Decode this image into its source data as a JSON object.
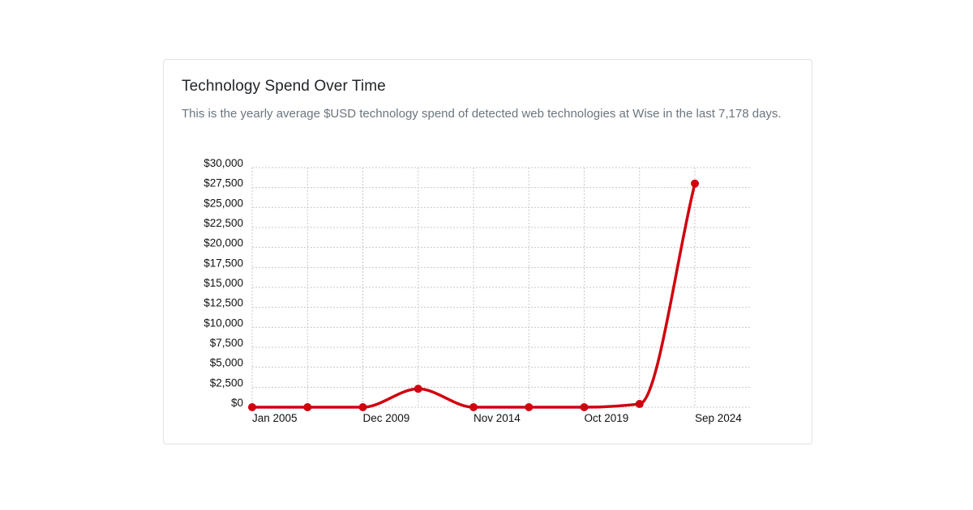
{
  "card": {
    "title": "Technology Spend Over Time",
    "subtitle": "This is the yearly average $USD technology spend of detected web technologies at Wise in the last 7,178 days."
  },
  "chart_data": {
    "type": "line",
    "title": "Technology Spend Over Time",
    "xlabel": "",
    "ylabel": "",
    "x_tick_labels": [
      "Jan 2005",
      "Dec 2009",
      "Nov 2014",
      "Oct 2019",
      "Sep 2024"
    ],
    "y_tick_labels": [
      "$0",
      "$2,500",
      "$5,000",
      "$7,500",
      "$10,000",
      "$12,500",
      "$15,000",
      "$17,500",
      "$20,000",
      "$22,500",
      "$25,000",
      "$27,500",
      "$30,000"
    ],
    "ylim": [
      0,
      30000
    ],
    "grid": true,
    "series_color": "#d0000e",
    "points": [
      {
        "x": "Jan 2005",
        "y": 0
      },
      {
        "x": "Jun 2007",
        "y": 0
      },
      {
        "x": "Dec 2009",
        "y": 0
      },
      {
        "x": "May 2012",
        "y": 2300
      },
      {
        "x": "Nov 2014",
        "y": 0
      },
      {
        "x": "Apr 2017",
        "y": 0
      },
      {
        "x": "Oct 2019",
        "y": 0
      },
      {
        "x": "Mar 2022",
        "y": 400
      },
      {
        "x": "Sep 2024",
        "y": 28000
      }
    ]
  }
}
